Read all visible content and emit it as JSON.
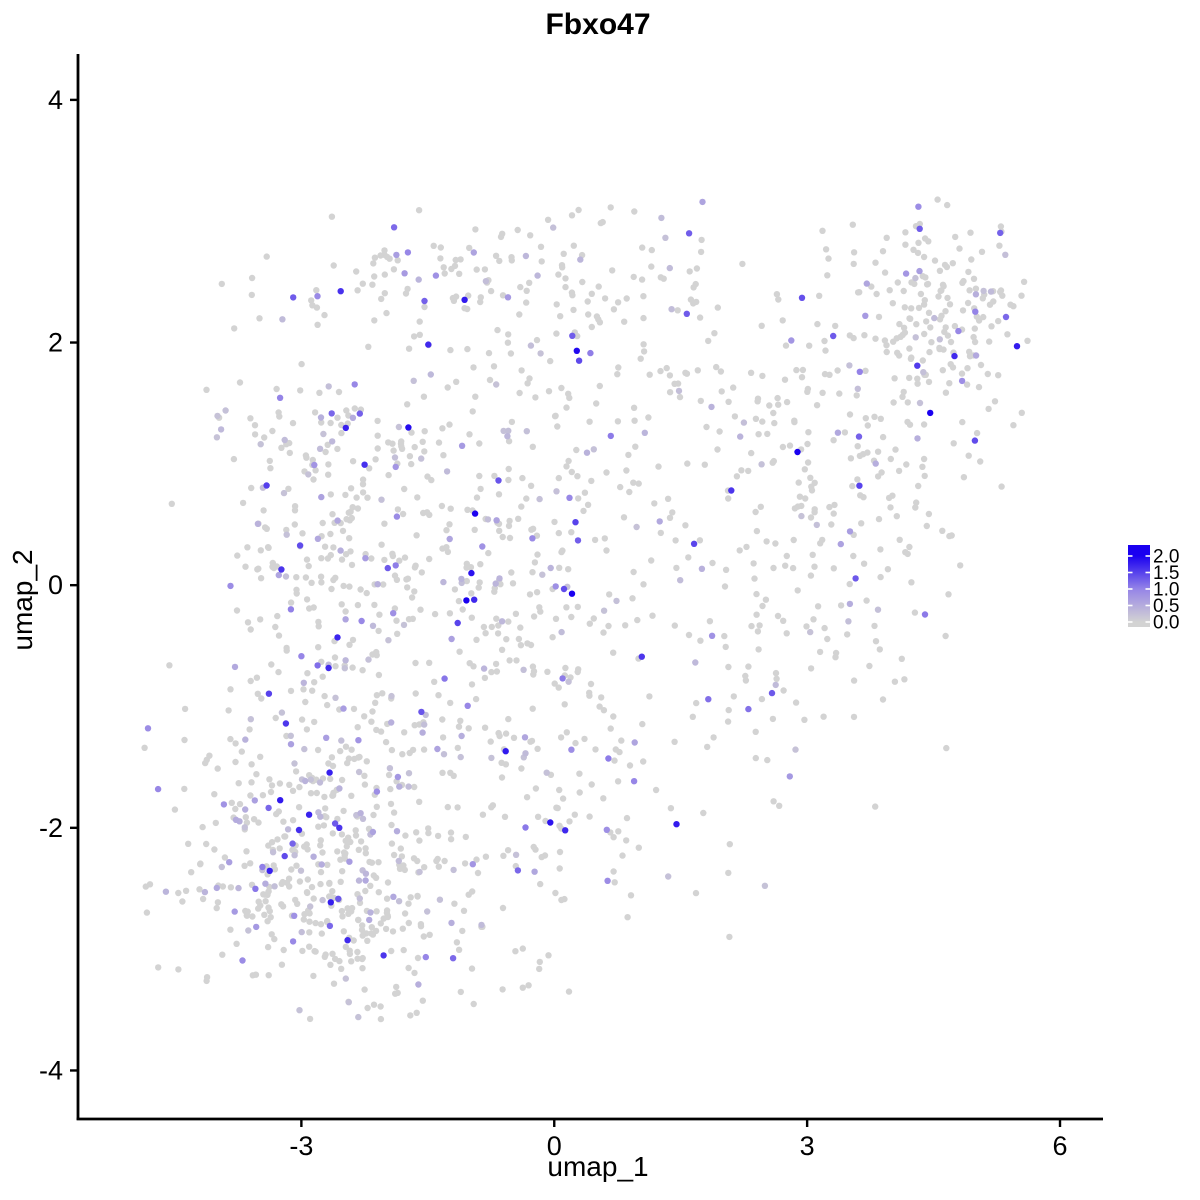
{
  "chart_data": {
    "type": "scatter",
    "title": "Fbxo47",
    "xlabel": "umap_1",
    "ylabel": "umap_2",
    "xlim": [
      -5.65,
      6.51
    ],
    "ylim": [
      -4.4,
      4.37
    ],
    "x_ticks": [
      -3,
      0,
      3,
      6
    ],
    "y_ticks": [
      4,
      2,
      0,
      -2,
      -4
    ],
    "grid": false,
    "background": "#ffffff",
    "axis_color": "#000000",
    "point_style": {
      "radius": 3.2,
      "zero_color": "#D3D3D3",
      "mid_color": "#9685E7",
      "max_color": "#1A00F0"
    },
    "legend": {
      "position": "right",
      "labels": [
        "2.0",
        "1.5",
        "1.0",
        "0.5",
        "0.0"
      ],
      "values": [
        2.0,
        1.5,
        1.0,
        0.5,
        0.0
      ],
      "low_color": "#D3D3D3",
      "high_color": "#1A00F0",
      "tick_color": "#ffffff"
    },
    "value_range": [
      0,
      2
    ],
    "seed": 47,
    "point_bounds": {
      "x_min": -4.88,
      "x_max": 5.62,
      "y_min": -3.6,
      "y_max": 3.18
    },
    "clusters": [
      {
        "name": "bottom-left-dense",
        "n": 300,
        "cx": -3.05,
        "cy": -2.2,
        "sx": 0.78,
        "sy": 0.6,
        "expr_frac": 0.2
      },
      {
        "name": "bottom-left-lower",
        "n": 120,
        "cx": -2.15,
        "cy": -2.75,
        "sx": 0.6,
        "sy": 0.42,
        "expr_frac": 0.16
      },
      {
        "name": "left-middle",
        "n": 240,
        "cx": -2.85,
        "cy": 0.35,
        "sx": 0.58,
        "sy": 0.95,
        "expr_frac": 0.22
      },
      {
        "name": "center-upper",
        "n": 310,
        "cx": -0.75,
        "cy": 0.5,
        "sx": 1.15,
        "sy": 0.95,
        "expr_frac": 0.18
      },
      {
        "name": "center-lower",
        "n": 240,
        "cx": -0.4,
        "cy": -1.65,
        "sx": 1.15,
        "sy": 0.75,
        "expr_frac": 0.16
      },
      {
        "name": "top-arch",
        "n": 140,
        "cx": -0.55,
        "cy": 2.55,
        "sx": 1.3,
        "sy": 0.32,
        "expr_frac": 0.15
      },
      {
        "name": "upper-middle-right",
        "n": 115,
        "cx": 1.7,
        "cy": 1.45,
        "sx": 0.95,
        "sy": 0.72,
        "expr_frac": 0.15
      },
      {
        "name": "right-sparse",
        "n": 95,
        "cx": 2.75,
        "cy": -0.35,
        "sx": 0.8,
        "sy": 0.8,
        "expr_frac": 0.12
      },
      {
        "name": "right-arm",
        "n": 145,
        "cx": 3.9,
        "cy": 1.1,
        "sx": 0.75,
        "sy": 0.85,
        "expr_frac": 0.13
      },
      {
        "name": "top-right-dense",
        "n": 165,
        "cx": 4.65,
        "cy": 2.35,
        "sx": 0.55,
        "sy": 0.45,
        "expr_frac": 0.12
      }
    ],
    "highlight_points": [
      [
        0.21,
        -0.07,
        2.0
      ],
      [
        4.46,
        1.42,
        2.0
      ],
      [
        -1.73,
        1.3,
        1.9
      ],
      [
        5.49,
        1.97,
        1.8
      ],
      [
        0.13,
        -2.02,
        1.7
      ],
      [
        1.45,
        -1.97,
        1.8
      ],
      [
        2.1,
        0.78,
        1.6
      ],
      [
        -2.55,
        -2.0,
        1.6
      ],
      [
        1.6,
        2.9,
        1.3
      ],
      [
        -0.95,
        -0.12,
        1.7
      ],
      [
        3.62,
        0.82,
        1.5
      ],
      [
        -1.9,
        2.95,
        1.2
      ]
    ],
    "outlier_points": [
      [
        -4.82,
        -1.18,
        0.9
      ],
      [
        -4.86,
        -1.34,
        0
      ],
      [
        -4.38,
        -1.02,
        0
      ],
      [
        -4.5,
        -1.85,
        0
      ],
      [
        -4.2,
        -2.3,
        0
      ],
      [
        4.32,
        3.12,
        0.9
      ],
      [
        0.95,
        3.08,
        0
      ]
    ]
  }
}
